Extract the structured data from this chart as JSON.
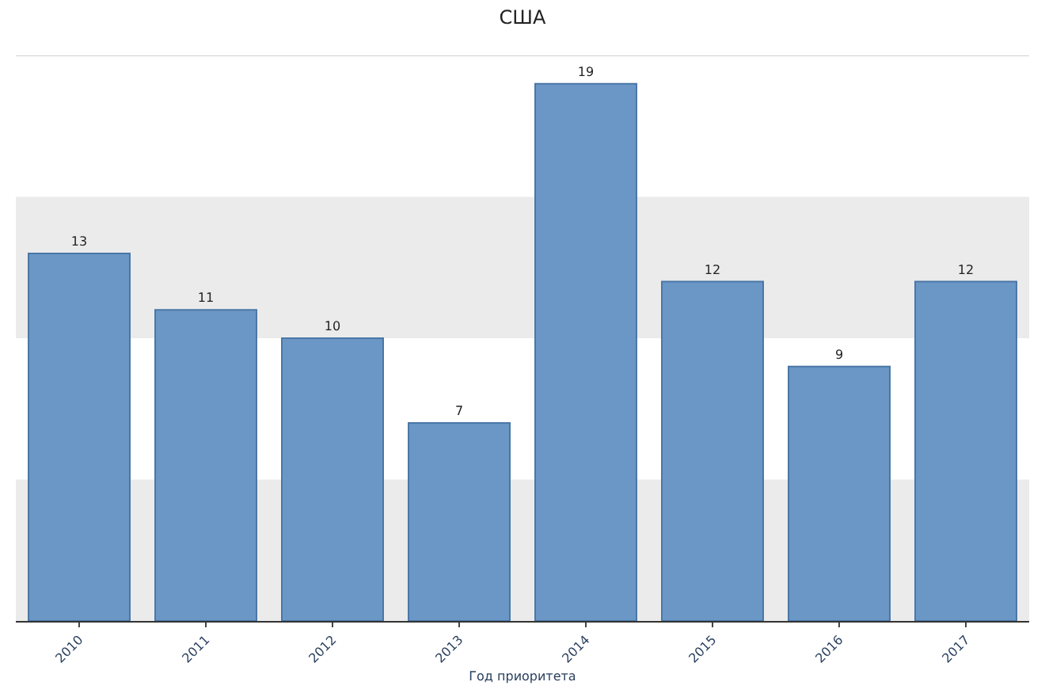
{
  "chart_data": {
    "type": "bar",
    "title": "США",
    "xlabel": "Год приоритета",
    "categories": [
      "2010",
      "2011",
      "2012",
      "2013",
      "2014",
      "2015",
      "2016",
      "2017"
    ],
    "values": [
      13,
      11,
      10,
      7,
      19,
      12,
      9,
      12
    ],
    "color": "#6a97c6",
    "ylim": [
      0,
      20
    ],
    "tick_labels": "x",
    "bands": [
      {
        "axis": "y",
        "from": 0,
        "to": 5,
        "color": "#ebebeb"
      },
      {
        "axis": "y",
        "from": 10,
        "to": 15,
        "color": "#ebebeb"
      }
    ],
    "data_labels": true
  }
}
